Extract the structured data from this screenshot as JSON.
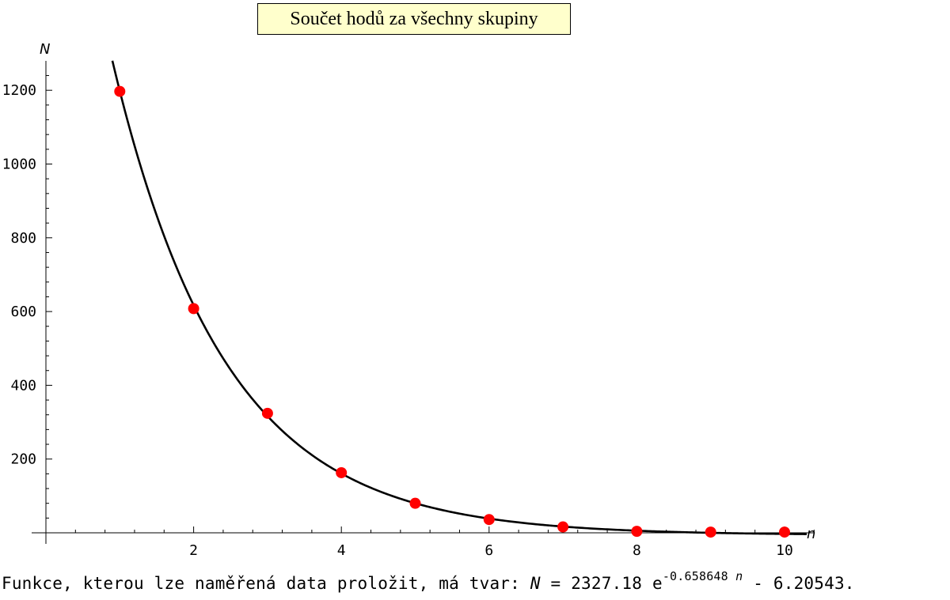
{
  "chart_data": {
    "type": "scatter",
    "title": "Součet hodů za všechny skupiny",
    "xlabel": "n",
    "ylabel": "N",
    "xlim": [
      0,
      10.4
    ],
    "ylim": [
      -20,
      1290
    ],
    "x_ticks": [
      2,
      4,
      6,
      8,
      10
    ],
    "y_ticks": [
      200,
      400,
      600,
      800,
      1000,
      1200
    ],
    "grid": false,
    "points": {
      "x": [
        1,
        2,
        3,
        4,
        5,
        6,
        7,
        8,
        9,
        10
      ],
      "y": [
        1197,
        608,
        324,
        163,
        80,
        36,
        16,
        4,
        2,
        2
      ],
      "color": "#ff0000"
    },
    "fit": {
      "formula": "N = 2327.18 e^(-0.658648 n) - 6.20543",
      "a": 2327.18,
      "b": -0.658648,
      "c": -6.20543,
      "x_range": [
        0.9,
        10.3
      ],
      "color": "#000000"
    }
  },
  "caption": {
    "prefix": "Funkce, kterou lze naměřená data proložit, má tvar: ",
    "lhs": "N",
    "equals": " = ",
    "coef": "2327.18",
    "base": "e",
    "exp_num": "-0.658648",
    "exp_var": "n",
    "suffix": " - 6.20543."
  }
}
